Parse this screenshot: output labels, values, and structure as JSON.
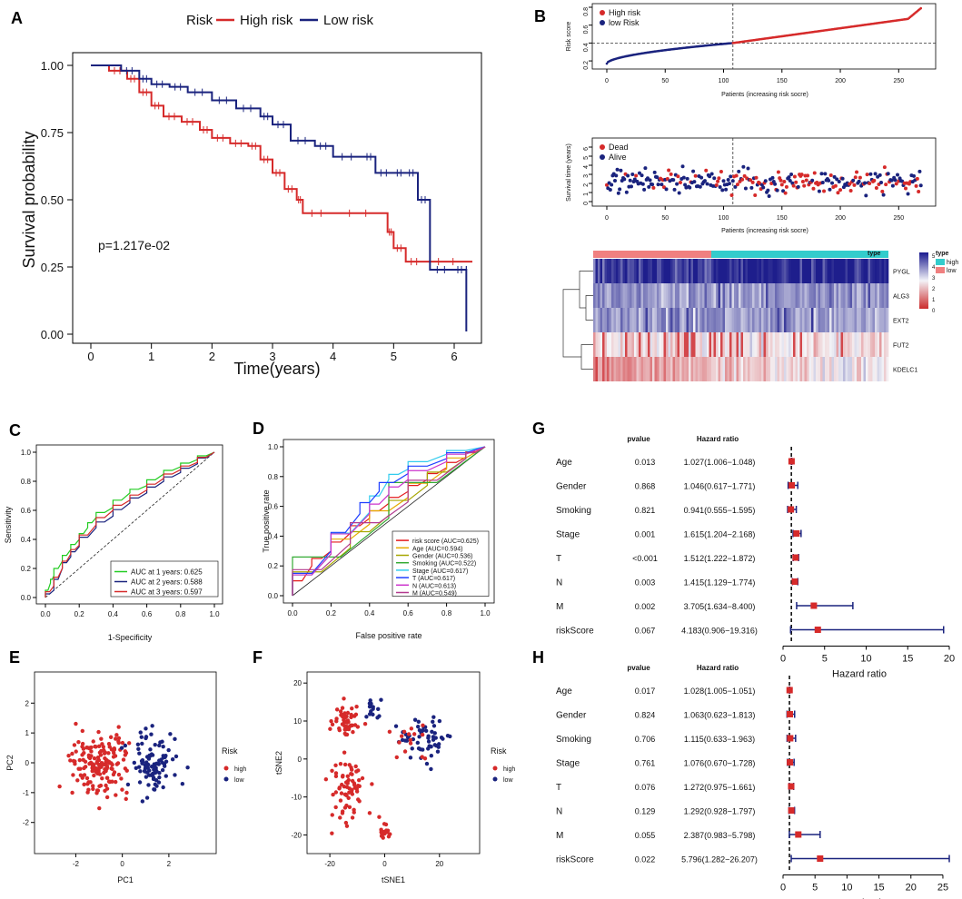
{
  "panels": {
    "A": "A",
    "B": "B",
    "C": "C",
    "D": "D",
    "E": "E",
    "F": "F",
    "G": "G",
    "H": "H"
  },
  "colors": {
    "high": "#d62a2a",
    "low": "#1a237e",
    "heat_high": "#2b2b8f",
    "heat_low": "#cc2b2b",
    "type_high": "#33cccc",
    "type_low": "#f08080"
  },
  "chart_data": [
    {
      "id": "A",
      "type": "line",
      "title": "",
      "xlabel": "Time(years)",
      "ylabel": "Survival probability",
      "xlim": [
        0,
        6.3
      ],
      "ylim": [
        0,
        1
      ],
      "xticks": [
        0,
        1,
        2,
        3,
        4,
        5,
        6
      ],
      "yticks": [
        "0.00",
        "0.25",
        "0.50",
        "0.75",
        "1.00"
      ],
      "legend_title": "Risk",
      "annotation": "p=1.217e-02",
      "series": [
        {
          "name": "High risk",
          "x": [
            0,
            0.3,
            0.6,
            0.8,
            1.0,
            1.2,
            1.5,
            1.8,
            2.0,
            2.3,
            2.6,
            2.8,
            3.0,
            3.2,
            3.4,
            3.5,
            4.0,
            4.9,
            5.0,
            5.2,
            5.5,
            6.3
          ],
          "y": [
            1.0,
            0.98,
            0.95,
            0.9,
            0.85,
            0.81,
            0.79,
            0.76,
            0.73,
            0.71,
            0.7,
            0.65,
            0.6,
            0.54,
            0.5,
            0.45,
            0.45,
            0.38,
            0.32,
            0.27,
            0.27,
            0.27
          ]
        },
        {
          "name": "Low risk",
          "x": [
            0,
            0.5,
            0.8,
            1.0,
            1.3,
            1.6,
            2.0,
            2.4,
            2.8,
            3.0,
            3.3,
            3.7,
            4.0,
            4.5,
            4.7,
            5.0,
            5.2,
            5.4,
            5.6,
            6.0,
            6.2,
            6.2
          ],
          "y": [
            1.0,
            0.98,
            0.95,
            0.93,
            0.92,
            0.9,
            0.87,
            0.84,
            0.81,
            0.78,
            0.72,
            0.7,
            0.66,
            0.66,
            0.6,
            0.6,
            0.6,
            0.5,
            0.24,
            0.24,
            0.24,
            0.01
          ]
        }
      ]
    },
    {
      "id": "B-risk",
      "type": "scatter",
      "xlabel": "Patients (increasing risk socre)",
      "ylabel": "Risk score",
      "xlim": [
        0,
        270
      ],
      "ylim": [
        0.15,
        0.8
      ],
      "xticks": [
        0,
        50,
        100,
        150,
        200,
        250
      ],
      "yticks": [
        0.2,
        0.4,
        0.6,
        0.8
      ],
      "cutoff_patient": 108,
      "cutoff_score": 0.4,
      "legend": [
        {
          "name": "High risk"
        },
        {
          "name": "low Risk"
        }
      ]
    },
    {
      "id": "B-time",
      "type": "scatter",
      "xlabel": "Patients (increasing risk socre)",
      "ylabel": "Survival time (years)",
      "xlim": [
        0,
        270
      ],
      "ylim": [
        0,
        6.5
      ],
      "xticks": [
        0,
        50,
        100,
        150,
        200,
        250
      ],
      "yticks": [
        0,
        1,
        2,
        3,
        4,
        5,
        6
      ],
      "legend": [
        {
          "name": "Dead"
        },
        {
          "name": "Alive"
        }
      ]
    },
    {
      "id": "B-heat",
      "type": "heatmap",
      "genes": [
        "PYGL",
        "ALG3",
        "EXT2",
        "FUT2",
        "KDELC1"
      ],
      "legend_title": "type",
      "type_labels": [
        "high",
        "low"
      ],
      "scale_ticks": [
        "5",
        "4",
        "3",
        "2",
        "1",
        "0"
      ]
    },
    {
      "id": "C",
      "type": "line",
      "xlabel": "1-Specificity",
      "ylabel": "Sensitivity",
      "xlim": [
        0,
        1
      ],
      "ylim": [
        0,
        1
      ],
      "ticks": [
        "0.0",
        "0.2",
        "0.4",
        "0.6",
        "0.8",
        "1.0"
      ],
      "series": [
        {
          "name": "AUC at 1 years: 0.625",
          "x": [
            0,
            0.03,
            0.05,
            0.1,
            0.15,
            0.2,
            0.25,
            0.3,
            0.4,
            0.5,
            0.6,
            0.7,
            0.8,
            0.9,
            1
          ],
          "y": [
            0,
            0.1,
            0.15,
            0.25,
            0.33,
            0.4,
            0.48,
            0.55,
            0.62,
            0.72,
            0.77,
            0.85,
            0.9,
            0.95,
            1
          ]
        },
        {
          "name": "AUC at 2 years: 0.588",
          "x": [
            0,
            0.05,
            0.1,
            0.15,
            0.2,
            0.3,
            0.4,
            0.5,
            0.6,
            0.7,
            0.8,
            0.9,
            1
          ],
          "y": [
            0,
            0.05,
            0.2,
            0.28,
            0.35,
            0.48,
            0.56,
            0.65,
            0.72,
            0.8,
            0.86,
            0.92,
            1
          ]
        },
        {
          "name": "AUC at 3 years: 0.597",
          "x": [
            0,
            0.05,
            0.1,
            0.15,
            0.2,
            0.3,
            0.4,
            0.5,
            0.6,
            0.7,
            0.8,
            0.9,
            1
          ],
          "y": [
            0,
            0.08,
            0.2,
            0.3,
            0.36,
            0.5,
            0.6,
            0.67,
            0.74,
            0.82,
            0.88,
            0.93,
            1
          ]
        }
      ]
    },
    {
      "id": "D",
      "type": "line",
      "xlabel": "False positive rate",
      "ylabel": "True positive rate",
      "xlim": [
        0,
        1
      ],
      "ylim": [
        0,
        1
      ],
      "ticks": [
        "0.0",
        "0.2",
        "0.4",
        "0.6",
        "0.8",
        "1.0"
      ],
      "series": [
        {
          "name": "risk score (AUC=0.625)",
          "color": "#e41a1c",
          "x": [
            0,
            0.1,
            0.2,
            0.3,
            0.4,
            0.5,
            0.6,
            0.7,
            0.8,
            0.9,
            1
          ],
          "y": [
            0,
            0.2,
            0.3,
            0.42,
            0.52,
            0.62,
            0.7,
            0.78,
            0.86,
            0.93,
            1
          ]
        },
        {
          "name": "Age (AUC=0.594)",
          "color": "#e6ab02",
          "x": [
            0,
            0.2,
            0.4,
            0.6,
            0.8,
            1
          ],
          "y": [
            0,
            0.28,
            0.48,
            0.66,
            0.85,
            1
          ]
        },
        {
          "name": "Gender (AUC=0.536)",
          "color": "#a6a600",
          "x": [
            0,
            0.3,
            0.5,
            0.7,
            0.9,
            1
          ],
          "y": [
            0,
            0.32,
            0.54,
            0.74,
            0.92,
            1
          ]
        },
        {
          "name": "Smoking (AUC=0.522)",
          "color": "#33aa33",
          "x": [
            0,
            0.5,
            1
          ],
          "y": [
            0,
            0.52,
            1
          ]
        },
        {
          "name": "Stage (AUC=0.617)",
          "color": "#33ccee",
          "x": [
            0,
            0.2,
            0.4,
            0.5,
            0.6,
            0.8,
            1
          ],
          "y": [
            0,
            0.28,
            0.56,
            0.78,
            0.85,
            0.95,
            1
          ]
        },
        {
          "name": "T (AUC=0.617)",
          "color": "#1f3fff",
          "x": [
            0,
            0.2,
            0.35,
            0.45,
            0.6,
            0.8,
            1
          ],
          "y": [
            0,
            0.3,
            0.55,
            0.7,
            0.82,
            0.92,
            1
          ]
        },
        {
          "name": "N (AUC=0.613)",
          "color": "#cc33cc",
          "x": [
            0,
            0.2,
            0.4,
            0.5,
            0.6,
            0.8,
            1
          ],
          "y": [
            0,
            0.28,
            0.55,
            0.68,
            0.78,
            0.9,
            1
          ]
        },
        {
          "name": "M (AUC=0.549)",
          "color": "#b33a8f",
          "x": [
            0,
            0.3,
            0.6,
            0.9,
            1
          ],
          "y": [
            0,
            0.35,
            0.63,
            0.92,
            1
          ]
        }
      ]
    },
    {
      "id": "E",
      "type": "scatter",
      "xlabel": "PC1",
      "ylabel": "PC2",
      "xticks": [
        -2,
        0,
        2
      ],
      "yticks": [
        -2,
        -1,
        0,
        1,
        2
      ],
      "legend_title": "Risk",
      "legend": [
        "high",
        "low"
      ]
    },
    {
      "id": "F",
      "type": "scatter",
      "xlabel": "tSNE1",
      "ylabel": "tSNE2",
      "xticks": [
        -20,
        0,
        20
      ],
      "yticks": [
        -20,
        -10,
        0,
        10,
        20
      ],
      "legend_title": "Risk",
      "legend": [
        "high",
        "low"
      ]
    },
    {
      "id": "G",
      "type": "forest",
      "col_pvalue": "pvalue",
      "col_hr": "Hazard ratio",
      "xlabel": "Hazard ratio",
      "xlim": [
        0,
        20
      ],
      "xticks": [
        0,
        5,
        10,
        15,
        20
      ],
      "rows": [
        {
          "name": "Age",
          "p": "0.013",
          "hr_text": "1.027(1.006−1.048)",
          "hr": 1.027,
          "lo": 1.006,
          "hi": 1.048
        },
        {
          "name": "Gender",
          "p": "0.868",
          "hr_text": "1.046(0.617−1.771)",
          "hr": 1.046,
          "lo": 0.617,
          "hi": 1.771
        },
        {
          "name": "Smoking",
          "p": "0.821",
          "hr_text": "0.941(0.555−1.595)",
          "hr": 0.941,
          "lo": 0.555,
          "hi": 1.595
        },
        {
          "name": "Stage",
          "p": "0.001",
          "hr_text": "1.615(1.204−2.168)",
          "hr": 1.615,
          "lo": 1.204,
          "hi": 2.168
        },
        {
          "name": "T",
          "p": "<0.001",
          "hr_text": "1.512(1.222−1.872)",
          "hr": 1.512,
          "lo": 1.222,
          "hi": 1.872
        },
        {
          "name": "N",
          "p": "0.003",
          "hr_text": "1.415(1.129−1.774)",
          "hr": 1.415,
          "lo": 1.129,
          "hi": 1.774
        },
        {
          "name": "M",
          "p": "0.002",
          "hr_text": "3.705(1.634−8.400)",
          "hr": 3.705,
          "lo": 1.634,
          "hi": 8.4
        },
        {
          "name": "riskScore",
          "p": "0.067",
          "hr_text": "4.183(0.906−19.316)",
          "hr": 4.183,
          "lo": 0.906,
          "hi": 19.316
        }
      ]
    },
    {
      "id": "H",
      "type": "forest",
      "col_pvalue": "pvalue",
      "col_hr": "Hazard ratio",
      "xlabel": "Hazard ratio",
      "xlim": [
        0,
        26
      ],
      "xticks": [
        0,
        5,
        10,
        15,
        20,
        25
      ],
      "rows": [
        {
          "name": "Age",
          "p": "0.017",
          "hr_text": "1.028(1.005−1.051)",
          "hr": 1.028,
          "lo": 1.005,
          "hi": 1.051
        },
        {
          "name": "Gender",
          "p": "0.824",
          "hr_text": "1.063(0.623−1.813)",
          "hr": 1.063,
          "lo": 0.623,
          "hi": 1.813
        },
        {
          "name": "Smoking",
          "p": "0.706",
          "hr_text": "1.115(0.633−1.963)",
          "hr": 1.115,
          "lo": 0.633,
          "hi": 1.963
        },
        {
          "name": "Stage",
          "p": "0.761",
          "hr_text": "1.076(0.670−1.728)",
          "hr": 1.076,
          "lo": 0.67,
          "hi": 1.728
        },
        {
          "name": "T",
          "p": "0.076",
          "hr_text": "1.272(0.975−1.661)",
          "hr": 1.272,
          "lo": 0.975,
          "hi": 1.661
        },
        {
          "name": "N",
          "p": "0.129",
          "hr_text": "1.292(0.928−1.797)",
          "hr": 1.292,
          "lo": 0.928,
          "hi": 1.797
        },
        {
          "name": "M",
          "p": "0.055",
          "hr_text": "2.387(0.983−5.798)",
          "hr": 2.387,
          "lo": 0.983,
          "hi": 5.798
        },
        {
          "name": "riskScore",
          "p": "0.022",
          "hr_text": "5.796(1.282−26.207)",
          "hr": 5.796,
          "lo": 1.282,
          "hi": 26.207
        }
      ]
    }
  ]
}
